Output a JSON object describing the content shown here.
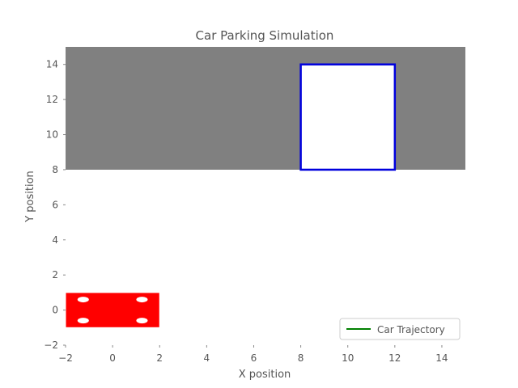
{
  "chart_data": {
    "type": "scatter",
    "title": "Car Parking Simulation",
    "xlabel": "X position",
    "ylabel": "Y position",
    "xlim": [
      -2,
      15
    ],
    "ylim": [
      -2,
      15
    ],
    "xticks": [
      -2,
      0,
      2,
      4,
      6,
      8,
      10,
      12,
      14
    ],
    "yticks": [
      -2,
      0,
      2,
      4,
      6,
      8,
      10,
      12,
      14
    ],
    "xtick_labels": [
      "−2",
      "0",
      "2",
      "4",
      "6",
      "8",
      "10",
      "12",
      "14"
    ],
    "ytick_labels": [
      "−2",
      "0",
      "2",
      "4",
      "6",
      "8",
      "10",
      "12",
      "14"
    ],
    "grid": false,
    "legend": {
      "placement": "lower-right",
      "entries": [
        {
          "label": "Car Trajectory",
          "color": "#008000"
        }
      ]
    },
    "shapes": {
      "obstacle_region": {
        "x0": -2,
        "x1": 15,
        "y0": 8,
        "y1": 15,
        "color": "#808080"
      },
      "parking_spot": {
        "x0": 8,
        "x1": 12,
        "y0": 8,
        "y1": 14,
        "fill": "#ffffff",
        "edge": "#0000dd"
      },
      "car": {
        "x0": -2,
        "x1": 2,
        "y0": -1,
        "y1": 1,
        "color": "#ff0000"
      },
      "wheels": [
        {
          "x": -1.25,
          "y": 0.6
        },
        {
          "x": 1.25,
          "y": 0.6
        },
        {
          "x": -1.25,
          "y": -0.6
        },
        {
          "x": 1.25,
          "y": -0.6
        }
      ]
    },
    "series": [
      {
        "name": "Car Trajectory",
        "color": "#008000",
        "x": [],
        "y": []
      }
    ]
  }
}
